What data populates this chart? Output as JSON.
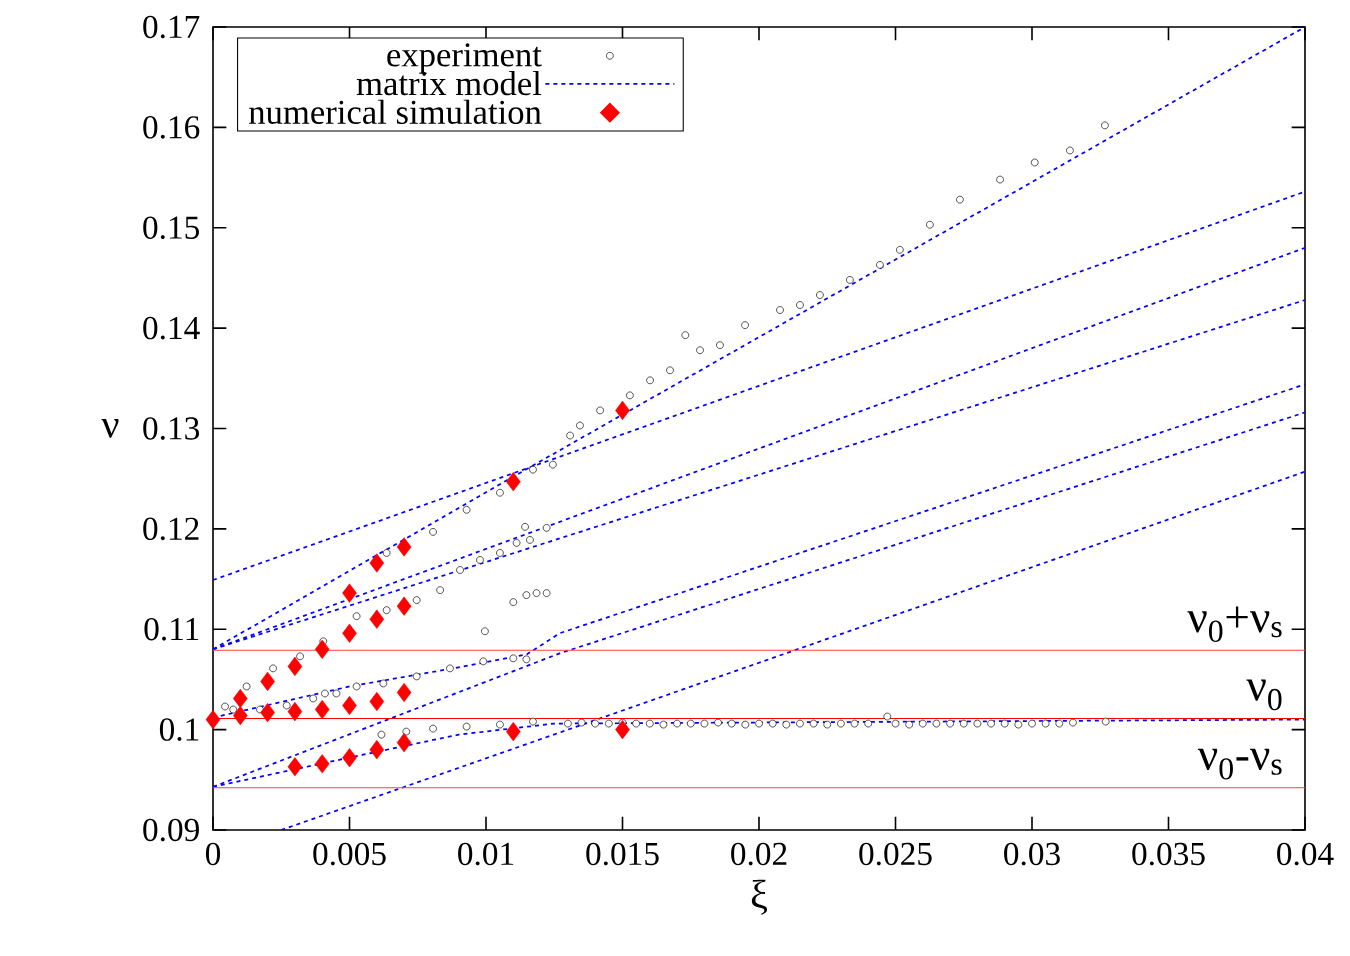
{
  "chart_data": {
    "type": "scatter",
    "xlabel": "ξ",
    "ylabel": "ν",
    "xlim": [
      0,
      0.04
    ],
    "ylim": [
      0.09,
      0.17
    ],
    "xticks": [
      0,
      0.005,
      0.01,
      0.015,
      0.02,
      0.025,
      0.03,
      0.035,
      0.04
    ],
    "yticks": [
      0.09,
      0.1,
      0.11,
      0.12,
      0.13,
      0.14,
      0.15,
      0.16,
      0.17
    ],
    "legend": "top left",
    "grid": false,
    "series": [
      {
        "name": "experiment",
        "marker": "circle",
        "color": "#000000",
        "x": [
          0.00636,
          0.00806,
          0.00929,
          0.01051,
          0.01172,
          0.01245,
          0.01308,
          0.01344,
          0.01418,
          0.01527,
          0.01601,
          0.01674,
          0.0173,
          0.01784,
          0.01857,
          0.01949,
          0.02077,
          0.0215,
          0.02223,
          0.02333,
          0.02443,
          0.02516,
          0.02626,
          0.02736,
          0.02883,
          0.0301,
          0.03139,
          0.03267,
          0.00044,
          0.00123,
          0.0022,
          0.00319,
          0.00404,
          0.00526,
          0.00636,
          0.00746,
          0.00832,
          0.00905,
          0.00978,
          0.01051,
          0.01112,
          0.01161,
          0.01222,
          0.01143,
          0.011,
          0.01148,
          0.01185,
          0.01222,
          0.00996,
          0.00074,
          0.00172,
          0.0027,
          0.00367,
          0.0041,
          0.00452,
          0.00526,
          0.00624,
          0.00746,
          0.00868,
          0.0099,
          0.011,
          0.01148,
          0.00617,
          0.00708,
          0.00806,
          0.00929,
          0.01051,
          0.01172,
          0.013,
          0.0135,
          0.014,
          0.0145,
          0.015,
          0.0155,
          0.016,
          0.0165,
          0.017,
          0.0175,
          0.018,
          0.0185,
          0.019,
          0.0195,
          0.02,
          0.0205,
          0.021,
          0.0215,
          0.022,
          0.0225,
          0.023,
          0.0235,
          0.024,
          0.0247,
          0.025,
          0.0255,
          0.026,
          0.0265,
          0.027,
          0.0275,
          0.028,
          0.0285,
          0.029,
          0.0295,
          0.03,
          0.0305,
          0.031,
          0.0315,
          0.0327
        ],
        "values": [
          0.1176,
          0.1197,
          0.1219,
          0.1236,
          0.1259,
          0.1264,
          0.1293,
          0.1303,
          0.1318,
          0.1333,
          0.1348,
          0.1358,
          0.1393,
          0.1378,
          0.1383,
          0.1403,
          0.1418,
          0.1423,
          0.1433,
          0.1448,
          0.1463,
          0.1478,
          0.1503,
          0.1528,
          0.1548,
          0.1565,
          0.1577,
          0.1602,
          0.1023,
          0.1043,
          0.1061,
          0.1073,
          0.1088,
          0.1113,
          0.1119,
          0.1129,
          0.1139,
          0.1159,
          0.1169,
          0.1176,
          0.1186,
          0.1189,
          0.1201,
          0.1202,
          0.1127,
          0.1134,
          0.1136,
          0.1136,
          0.1098,
          0.102,
          0.102,
          0.1024,
          0.1031,
          0.1036,
          0.1036,
          0.1043,
          0.1046,
          0.1053,
          0.1061,
          0.1068,
          0.1071,
          0.107,
          0.0995,
          0.0998,
          0.1001,
          0.1003,
          0.1005,
          0.1008,
          0.1006,
          0.1007,
          0.1006,
          0.1006,
          0.1007,
          0.1006,
          0.1006,
          0.1005,
          0.1006,
          0.1006,
          0.1006,
          0.1007,
          0.1006,
          0.1005,
          0.1006,
          0.1006,
          0.1005,
          0.1006,
          0.1006,
          0.1005,
          0.1006,
          0.1006,
          0.1006,
          0.1013,
          0.1006,
          0.1005,
          0.1006,
          0.1006,
          0.1006,
          0.1006,
          0.1006,
          0.1006,
          0.1006,
          0.1005,
          0.1006,
          0.1006,
          0.1006,
          0.1007,
          0.1008
        ]
      },
      {
        "name": "matrix model",
        "type": "line",
        "marker": "none",
        "line_style": "dashed",
        "color": "#0000ff",
        "x": [
          0,
          0.04
        ],
        "values": [
          0.1149,
          0.1536
        ]
      },
      {
        "name": "numerical simulation",
        "marker": "diamond",
        "color": "#ff0000",
        "x": [
          0,
          0.001,
          0.001,
          0.002,
          0.002,
          0.003,
          0.003,
          0.003,
          0.004,
          0.004,
          0.004,
          0.005,
          0.005,
          0.005,
          0.005,
          0.006,
          0.006,
          0.006,
          0.006,
          0.007,
          0.007,
          0.007,
          0.007,
          0.011,
          0.011,
          0.015,
          0.015
        ],
        "values": [
          0.101,
          0.1031,
          0.1014,
          0.1048,
          0.1017,
          0.1063,
          0.1018,
          0.0963,
          0.108,
          0.102,
          0.0966,
          0.1136,
          0.1096,
          0.1024,
          0.0972,
          0.1166,
          0.111,
          0.1028,
          0.098,
          0.1182,
          0.1123,
          0.1037,
          0.0987,
          0.1247,
          0.0998,
          0.1318,
          0.1
        ]
      },
      {
        "type": "line",
        "marker": "none",
        "line_style": "dashed",
        "color": "#0000ff",
        "x": [
          0,
          0.011,
          0.04
        ],
        "values": [
          0.108,
          0.1252,
          0.17
        ]
      },
      {
        "type": "line",
        "marker": "none",
        "line_style": "dashed",
        "color": "#0000ff",
        "x": [
          0,
          0.04
        ],
        "values": [
          0.108,
          0.148
        ]
      },
      {
        "type": "line",
        "marker": "none",
        "line_style": "dashed",
        "color": "#0000ff",
        "x": [
          0,
          0.04
        ],
        "values": [
          0.108,
          0.1428
        ]
      },
      {
        "type": "line",
        "marker": "none",
        "line_style": "dashed",
        "color": "#0000ff",
        "x": [
          0,
          0.005,
          0.009,
          0.0115,
          0.0127,
          0.04
        ],
        "values": [
          0.1012,
          0.1043,
          0.1062,
          0.1075,
          0.1096,
          0.1344
        ]
      },
      {
        "type": "line",
        "marker": "none",
        "line_style": "dashed",
        "color": "#0000ff",
        "x": [
          0,
          0.0064,
          0.0127,
          0.04
        ],
        "values": [
          0.0943,
          0.101,
          0.1076,
          0.1316
        ]
      },
      {
        "type": "line",
        "marker": "none",
        "line_style": "dashed",
        "color": "#0000ff",
        "x": [
          0,
          0.0055,
          0.009,
          0.0125,
          0.04
        ],
        "values": [
          0.0943,
          0.0975,
          0.0995,
          0.1006,
          0.101
        ]
      },
      {
        "type": "line",
        "marker": "none",
        "line_style": "dashed",
        "color": "#0000ff",
        "x": [
          0.0025,
          0.04
        ],
        "values": [
          0.09,
          0.1257
        ]
      }
    ],
    "ref_lines": [
      {
        "axis": "y",
        "value": 0.1079,
        "label": "ν$_{0}$+ν$_{s}$",
        "color": "#ff4040"
      },
      {
        "axis": "y",
        "value": 0.1011,
        "label": "ν$_{0}$",
        "color": "#ff0000"
      },
      {
        "axis": "y",
        "value": 0.0942,
        "label": "ν$_{0}$-ν$_{s}$",
        "color": "#ff4040"
      }
    ]
  }
}
